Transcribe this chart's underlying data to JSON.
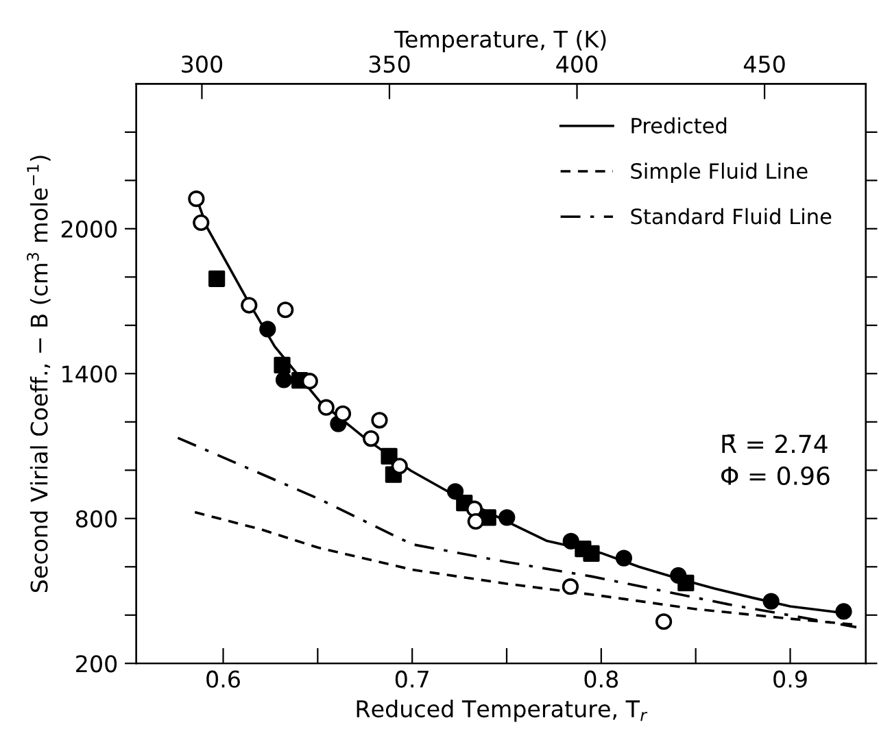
{
  "chart_data": {
    "type": "scatter",
    "xlabel": "Reduced Temperature, T$_{r}$",
    "ylabel": "Second Virial Coeff., − B (cm$^{3}$ mole$^{−1}$)",
    "x2label": "Temperature, T (K)",
    "xlim": [
      0.554,
      0.94
    ],
    "ylim": [
      200,
      2600
    ],
    "x2lim": [
      282.5,
      477
    ],
    "xticks": [
      0.6,
      {
        "value": 0.65,
        "label": null
      },
      0.7,
      {
        "value": 0.75,
        "label": null
      },
      0.8,
      {
        "value": 0.85,
        "label": null
      },
      0.9
    ],
    "yticks": [
      200,
      {
        "value": 400,
        "label": null
      },
      {
        "value": 600,
        "label": null
      },
      800,
      {
        "value": 1000,
        "label": null
      },
      {
        "value": 1200,
        "label": null
      },
      1400,
      {
        "value": 1600,
        "label": null
      },
      {
        "value": 1800,
        "label": null
      },
      2000,
      {
        "value": 2200,
        "label": null
      },
      {
        "value": 2400,
        "label": null
      }
    ],
    "x2ticks": [
      300,
      350,
      400,
      450
    ],
    "grid": false,
    "legend": "top right",
    "annotations": [
      "R̄ = 2.74",
      "Φ = 0.96"
    ],
    "series": [
      {
        "name": "Predicted",
        "type": "line",
        "line_style": "solid",
        "marker": "none",
        "color": "#000000",
        "x": [
          0.586,
          0.5914,
          0.613,
          0.6273,
          0.6513,
          0.6753,
          0.6993,
          0.7232,
          0.7473,
          0.771,
          0.8,
          0.82,
          0.84,
          0.86,
          0.88,
          0.9,
          0.93
        ],
        "values": [
          2124,
          2006,
          1702,
          1512,
          1283,
          1131,
          998,
          893,
          798,
          708,
          657,
          600,
          553,
          510,
          472,
          436,
          407
        ]
      },
      {
        "name": "Simple Fluid Line",
        "type": "line",
        "line_style": "dashed",
        "marker": "none",
        "color": "#000000",
        "x": [
          0.585,
          0.62,
          0.65,
          0.7,
          0.75,
          0.8,
          0.85,
          0.9,
          0.935
        ],
        "values": [
          826,
          755,
          680,
          588,
          530,
          480,
          425,
          385,
          360
        ]
      },
      {
        "name": "Standard Fluid Line",
        "type": "line",
        "line_style": "dashdot",
        "marker": "none",
        "color": "#000000",
        "x": [
          0.576,
          0.651,
          0.7,
          0.75,
          0.795,
          0.867,
          0.935
        ],
        "values": [
          1134,
          880,
          693,
          620,
          560,
          445,
          350
        ]
      },
      {
        "marker": "circle",
        "color": "#000000",
        "x": [
          0.6235,
          0.6321,
          0.6609,
          0.7228,
          0.7501,
          0.784,
          0.812,
          0.8408,
          0.8899,
          0.9283
        ],
        "values": [
          1584,
          1374,
          1192,
          912,
          804,
          706,
          636,
          564,
          457,
          415
        ]
      },
      {
        "marker": "square",
        "color": "#000000",
        "x": [
          0.5966,
          0.6312,
          0.6405,
          0.6878,
          0.6901,
          0.7276,
          0.7401,
          0.7904,
          0.7948,
          0.8448
        ],
        "values": [
          1793,
          1435,
          1372,
          1058,
          982,
          864,
          804,
          674,
          655,
          533
        ]
      },
      {
        "marker": "circle",
        "color": "#ffffff",
        "x": [
          0.5858,
          0.5883,
          0.6137,
          0.6329,
          0.6458,
          0.6545,
          0.6633,
          0.6827,
          0.6782,
          0.6933,
          0.7329,
          0.7336,
          0.7837,
          0.8331
        ],
        "values": [
          2124,
          2025,
          1683,
          1664,
          1369,
          1260,
          1234,
          1207,
          1131,
          1017,
          840,
          788,
          518,
          373
        ]
      }
    ]
  }
}
